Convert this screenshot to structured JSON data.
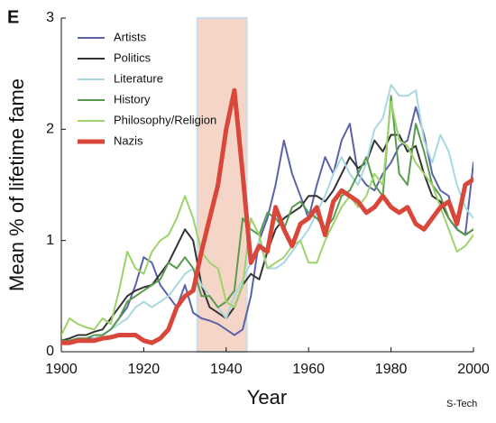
{
  "chart_data": {
    "type": "line",
    "panel_label": "E",
    "xlabel": "Year",
    "ylabel": "Mean % of lifetime fame",
    "watermark": "S-Tech",
    "x": [
      1900,
      1902,
      1904,
      1906,
      1908,
      1910,
      1912,
      1914,
      1916,
      1918,
      1920,
      1922,
      1924,
      1926,
      1928,
      1930,
      1932,
      1934,
      1936,
      1938,
      1940,
      1942,
      1944,
      1946,
      1948,
      1950,
      1952,
      1954,
      1956,
      1958,
      1960,
      1962,
      1964,
      1966,
      1968,
      1970,
      1972,
      1974,
      1976,
      1978,
      1980,
      1982,
      1984,
      1986,
      1988,
      1990,
      1992,
      1994,
      1996,
      1998,
      2000
    ],
    "xlim": [
      1900,
      2000
    ],
    "xticks": [
      1900,
      1920,
      1940,
      1960,
      1980,
      2000
    ],
    "ylim": [
      0,
      3
    ],
    "yticks": [
      0,
      1,
      2,
      3
    ],
    "shade": {
      "xlim": [
        1933,
        1945
      ],
      "color": "#f5d5c8"
    },
    "legend": "upper left",
    "series": [
      {
        "name": "Artists",
        "color": "#5b62a8",
        "width": 2,
        "values": [
          0.08,
          0.1,
          0.12,
          0.12,
          0.12,
          0.15,
          0.2,
          0.3,
          0.4,
          0.6,
          0.85,
          0.8,
          0.6,
          0.5,
          0.4,
          0.6,
          0.35,
          0.3,
          0.28,
          0.25,
          0.2,
          0.15,
          0.2,
          0.5,
          1.0,
          1.2,
          1.5,
          1.9,
          1.6,
          1.4,
          1.2,
          1.5,
          1.75,
          1.6,
          1.9,
          2.05,
          1.6,
          1.5,
          1.45,
          1.6,
          1.7,
          1.85,
          1.9,
          2.2,
          1.95,
          1.6,
          1.45,
          1.4,
          1.1,
          1.05,
          1.7
        ]
      },
      {
        "name": "Politics",
        "color": "#333333",
        "width": 2,
        "values": [
          0.1,
          0.12,
          0.15,
          0.15,
          0.18,
          0.2,
          0.3,
          0.4,
          0.5,
          0.55,
          0.58,
          0.6,
          0.7,
          0.8,
          0.95,
          1.1,
          1.0,
          0.6,
          0.4,
          0.35,
          0.3,
          0.4,
          0.6,
          0.7,
          0.65,
          0.9,
          1.1,
          1.2,
          1.25,
          1.3,
          1.4,
          1.4,
          1.35,
          1.45,
          1.6,
          1.75,
          1.65,
          1.7,
          1.9,
          1.8,
          1.95,
          1.95,
          1.8,
          1.85,
          1.6,
          1.4,
          1.35,
          1.2,
          1.1,
          1.05,
          1.1
        ]
      },
      {
        "name": "Literature",
        "color": "#a8d8e0",
        "width": 2,
        "values": [
          0.08,
          0.08,
          0.1,
          0.1,
          0.12,
          0.15,
          0.2,
          0.25,
          0.3,
          0.4,
          0.45,
          0.4,
          0.45,
          0.5,
          0.6,
          0.7,
          0.75,
          0.6,
          0.5,
          0.4,
          0.3,
          0.5,
          0.65,
          0.8,
          1.0,
          0.75,
          0.75,
          0.8,
          0.9,
          1.0,
          1.1,
          1.25,
          1.4,
          1.6,
          1.75,
          1.6,
          1.5,
          1.7,
          2.0,
          2.1,
          2.4,
          2.3,
          2.3,
          2.35,
          1.9,
          1.7,
          1.95,
          1.8,
          1.5,
          1.3,
          1.2
        ]
      },
      {
        "name": "History",
        "color": "#5a9a4e",
        "width": 2,
        "values": [
          0.1,
          0.1,
          0.12,
          0.12,
          0.15,
          0.15,
          0.2,
          0.3,
          0.45,
          0.5,
          0.55,
          0.6,
          0.65,
          0.8,
          0.75,
          0.85,
          0.75,
          0.5,
          0.5,
          0.4,
          0.45,
          0.55,
          1.2,
          1.1,
          1.05,
          1.25,
          1.2,
          1.1,
          1.3,
          1.35,
          1.25,
          1.2,
          1.1,
          1.2,
          1.4,
          1.45,
          1.6,
          1.75,
          1.5,
          1.4,
          2.3,
          1.6,
          1.5,
          2.05,
          1.8,
          1.5,
          1.4,
          1.2,
          1.1,
          1.05,
          1.1
        ]
      },
      {
        "name": "Philosophy/Religion",
        "color": "#9dd36a",
        "width": 2,
        "values": [
          0.15,
          0.3,
          0.25,
          0.22,
          0.2,
          0.3,
          0.25,
          0.55,
          0.9,
          0.75,
          0.7,
          0.9,
          1.0,
          1.05,
          1.2,
          1.4,
          1.2,
          0.9,
          0.8,
          0.75,
          0.45,
          0.4,
          0.6,
          1.2,
          1.05,
          0.75,
          0.8,
          0.85,
          0.95,
          1.0,
          0.8,
          0.8,
          1.0,
          1.15,
          1.3,
          1.4,
          1.3,
          1.4,
          1.6,
          1.5,
          2.25,
          1.9,
          1.85,
          1.7,
          1.6,
          1.5,
          1.3,
          1.1,
          0.9,
          0.95,
          1.05
        ]
      },
      {
        "name": "Nazis",
        "color": "#d9473a",
        "width": 5,
        "values": [
          0.08,
          0.08,
          0.1,
          0.1,
          0.1,
          0.12,
          0.13,
          0.15,
          0.15,
          0.15,
          0.1,
          0.08,
          0.12,
          0.2,
          0.4,
          0.5,
          0.55,
          0.9,
          1.2,
          1.5,
          2.0,
          2.35,
          1.6,
          0.8,
          0.95,
          0.9,
          1.3,
          1.1,
          0.95,
          1.15,
          1.2,
          1.3,
          1.05,
          1.35,
          1.45,
          1.4,
          1.35,
          1.25,
          1.3,
          1.4,
          1.3,
          1.25,
          1.3,
          1.15,
          1.1,
          1.2,
          1.3,
          1.35,
          1.15,
          1.5,
          1.55
        ]
      }
    ]
  }
}
